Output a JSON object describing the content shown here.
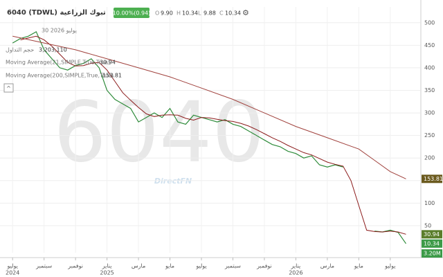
{
  "header": {
    "symbol": "6040 (TDWL) تبوك الزراعية",
    "change": "10.00%(0.94)",
    "ohlc": [
      {
        "key": "O",
        "value": "9.90"
      },
      {
        "key": "H",
        "value": "10.34"
      },
      {
        "key": "L",
        "value": "9.88"
      },
      {
        "key": "C",
        "value": "10.34"
      }
    ],
    "date": "30 يوليو 2026"
  },
  "legend": {
    "volume": "حجم التداول",
    "volume_value": "3,203,110",
    "volume_tag": "3.20M",
    "ma21": "Moving Average(21,SIMPLE,True,True)",
    "ma200": "Moving Average(200,SIMPLE,True,True)"
  },
  "watermark": "6040",
  "brand": "DirectFN",
  "chart_data": {
    "type": "line",
    "xlim": [
      -0.8,
      25.9
    ],
    "ylim": [
      -10,
      535
    ],
    "grid": true,
    "yticks": [
      50,
      100,
      150,
      200,
      250,
      300,
      350,
      400,
      450,
      500
    ],
    "xticks": [
      {
        "value": 0,
        "label": "يوليو"
      },
      {
        "value": 2,
        "label": "سبتمبر"
      },
      {
        "value": 4,
        "label": "نوفمبر"
      },
      {
        "value": 6,
        "label": "يناير"
      },
      {
        "value": 8,
        "label": "مارس"
      },
      {
        "value": 10,
        "label": "مايو"
      },
      {
        "value": 12,
        "label": "يوليو"
      },
      {
        "value": 14,
        "label": "سبتمبر"
      },
      {
        "value": 16,
        "label": "نوفمبر"
      },
      {
        "value": 18,
        "label": "يناير"
      },
      {
        "value": 20,
        "label": "مارس"
      },
      {
        "value": 22,
        "label": "مايو"
      },
      {
        "value": 24,
        "label": "يوليو"
      }
    ],
    "xyears": [
      {
        "value": 0,
        "label": "2024"
      },
      {
        "value": 6,
        "label": "2025"
      },
      {
        "value": 18,
        "label": "2026"
      }
    ],
    "series": [
      {
        "name": "Close",
        "color": "#2e8b3a",
        "x": [
          0,
          0.5,
          1,
          1.5,
          2,
          2.5,
          3,
          3.5,
          4,
          4.5,
          5,
          5.5,
          6,
          6.5,
          7,
          7.5,
          8,
          8.5,
          9,
          9.5,
          10,
          10.5,
          11,
          11.5,
          12,
          12.5,
          13,
          13.5,
          14,
          14.5,
          15,
          15.5,
          16,
          16.5,
          17,
          17.5,
          18,
          18.5,
          19,
          19.5,
          20,
          20.5,
          21,
          21.5,
          22,
          22.5,
          23,
          23.5,
          24,
          24.5,
          25
        ],
        "values": [
          455,
          465,
          470,
          480,
          440,
          420,
          400,
          395,
          405,
          410,
          420,
          400,
          350,
          330,
          320,
          310,
          280,
          290,
          300,
          290,
          310,
          280,
          275,
          295,
          290,
          285,
          280,
          285,
          275,
          270,
          260,
          250,
          240,
          230,
          225,
          215,
          210,
          200,
          205,
          185,
          180,
          185,
          180,
          null,
          null,
          null,
          38,
          36,
          40,
          35,
          10.34
        ]
      },
      {
        "name": "MA21",
        "color": "#8b1a1a",
        "x": [
          0.5,
          1,
          1.5,
          2,
          2.5,
          3,
          3.5,
          4,
          4.5,
          5,
          5.5,
          6,
          6.5,
          7,
          7.5,
          8,
          8.5,
          9,
          9.5,
          10,
          10.5,
          11,
          11.5,
          12,
          12.5,
          13,
          13.5,
          14,
          14.5,
          15,
          15.5,
          16,
          16.5,
          17,
          17.5,
          18,
          18.5,
          19,
          19.5,
          20,
          20.5,
          21,
          21.5,
          22,
          22.5,
          23,
          23.5,
          24,
          24.5,
          25
        ],
        "values": [
          462,
          466,
          470,
          462,
          448,
          430,
          412,
          404,
          405,
          410,
          412,
          395,
          370,
          345,
          328,
          312,
          298,
          292,
          295,
          296,
          295,
          288,
          284,
          290,
          289,
          286,
          283,
          281,
          277,
          271,
          263,
          254,
          245,
          237,
          228,
          220,
          212,
          207,
          199,
          191,
          186,
          182,
          150,
          95,
          40,
          37,
          36,
          38,
          36,
          30.94
        ]
      },
      {
        "name": "MA200",
        "color": "#a0413c",
        "x": [
          0,
          2,
          4,
          6,
          8,
          10,
          12,
          14,
          16,
          18,
          20,
          22,
          23,
          24,
          25
        ],
        "values": [
          470,
          455,
          440,
          420,
          400,
          380,
          355,
          330,
          300,
          270,
          245,
          220,
          195,
          170,
          153.81
        ]
      }
    ]
  }
}
